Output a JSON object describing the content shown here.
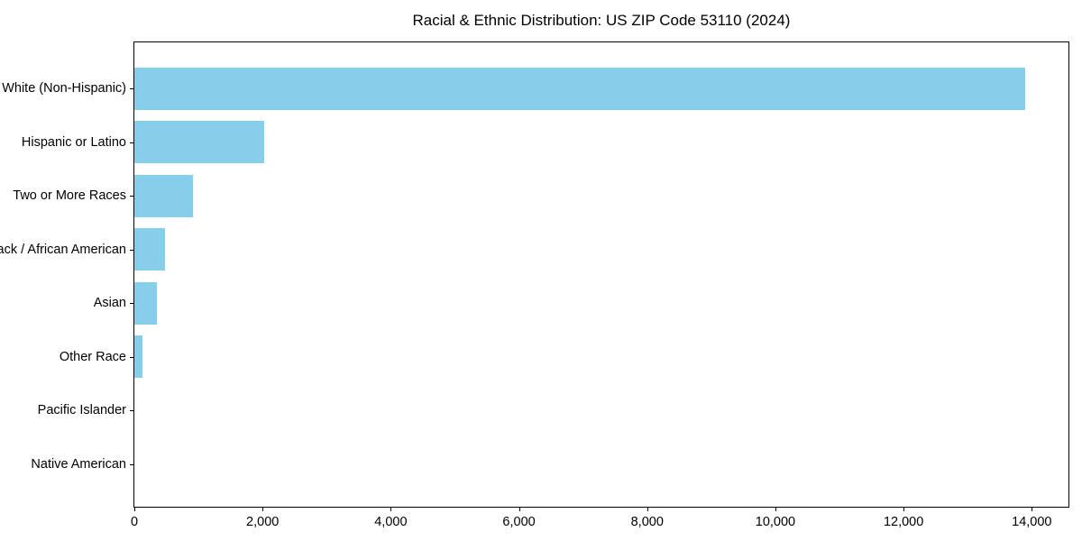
{
  "figure": {
    "background": "#ffffff"
  },
  "chart_data": {
    "type": "bar",
    "orientation": "horizontal",
    "title": "Racial & Ethnic Distribution: US ZIP Code 53110 (2024)",
    "categories": [
      "White (Non-Hispanic)",
      "Hispanic or Latino",
      "Two or More Races",
      "Black / African American",
      "Asian",
      "Other Race",
      "Pacific Islander",
      "Native American"
    ],
    "values": [
      13890,
      2030,
      915,
      480,
      350,
      130,
      0,
      0
    ],
    "xlabel": "",
    "ylabel": "",
    "xlim": [
      0,
      14600
    ],
    "x_ticks": [
      0,
      2000,
      4000,
      6000,
      8000,
      10000,
      12000,
      14000
    ],
    "x_tick_labels": [
      "0",
      "2,000",
      "4,000",
      "6,000",
      "8,000",
      "10,000",
      "12,000",
      "14,000"
    ],
    "bar_color": "#87CEEB",
    "spine_color": "#000000",
    "text_color": "#000000",
    "grid": false,
    "legend": null
  }
}
